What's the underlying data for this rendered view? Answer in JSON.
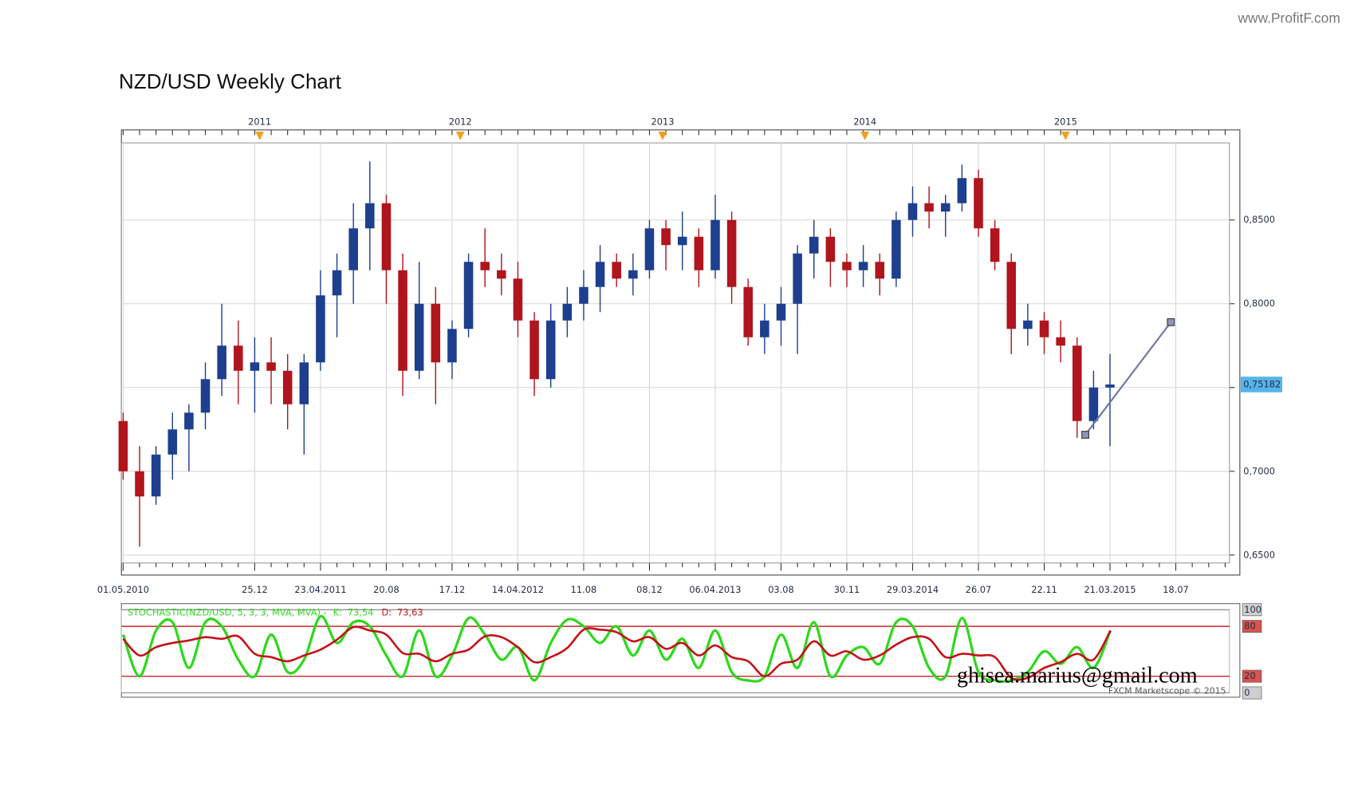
{
  "site": "www.ProfitF.com",
  "watermark": "ghisea.marius@gmail.com",
  "credit": "FXCM Marketscope © 2015",
  "chart_data": [
    {
      "type": "candlestick",
      "title": "NZD/USD Weekly Chart",
      "categories": [
        "01.05.2010",
        null,
        null,
        null,
        null,
        null,
        null,
        null,
        "25.12",
        null,
        null,
        null,
        "23.04.2011",
        null,
        null,
        null,
        "20.08",
        null,
        null,
        null,
        "17.12",
        null,
        null,
        null,
        "14.04.2012",
        null,
        null,
        null,
        "11.08",
        null,
        null,
        null,
        "08.12",
        null,
        null,
        null,
        "06.04.2013",
        null,
        null,
        null,
        "03.08",
        null,
        null,
        null,
        "30.11",
        null,
        null,
        null,
        "29.03.2014",
        null,
        null,
        null,
        "26.07",
        null,
        null,
        null,
        "22.11",
        null,
        null,
        null,
        "21.03.2015",
        null,
        null,
        null,
        "18.07",
        null,
        null,
        null
      ],
      "open": [
        0.73,
        0.7,
        0.685,
        0.71,
        0.725,
        0.735,
        0.755,
        0.775,
        0.76,
        0.765,
        0.76,
        0.74,
        0.765,
        0.805,
        0.82,
        0.845,
        0.86,
        0.82,
        0.76,
        0.8,
        0.765,
        0.785,
        0.825,
        0.82,
        0.815,
        0.79,
        0.755,
        0.79,
        0.8,
        0.81,
        0.825,
        0.815,
        0.82,
        0.845,
        0.835,
        0.84,
        0.82,
        0.85,
        0.81,
        0.78,
        0.79,
        0.8,
        0.83,
        0.84,
        0.825,
        0.82,
        0.825,
        0.815,
        0.85,
        0.86,
        0.855,
        0.86,
        0.875,
        0.845,
        0.825,
        0.785,
        0.79,
        0.78,
        0.775,
        0.73,
        0.75,
        null,
        null,
        null,
        null,
        null,
        null,
        null
      ],
      "high": [
        0.735,
        0.715,
        0.715,
        0.735,
        0.74,
        0.765,
        0.8,
        0.79,
        0.78,
        0.78,
        0.77,
        0.77,
        0.82,
        0.83,
        0.86,
        0.885,
        0.865,
        0.83,
        0.825,
        0.81,
        0.79,
        0.83,
        0.845,
        0.83,
        0.825,
        0.795,
        0.8,
        0.81,
        0.82,
        0.835,
        0.83,
        0.83,
        0.85,
        0.85,
        0.855,
        0.845,
        0.865,
        0.855,
        0.815,
        0.8,
        0.81,
        0.835,
        0.85,
        0.845,
        0.83,
        0.835,
        0.83,
        0.855,
        0.87,
        0.87,
        0.865,
        0.883,
        0.88,
        0.85,
        0.83,
        0.8,
        0.795,
        0.79,
        0.78,
        0.76,
        0.77,
        null,
        null,
        null,
        null,
        null,
        null,
        null
      ],
      "low": [
        0.695,
        0.655,
        0.68,
        0.695,
        0.7,
        0.725,
        0.745,
        0.74,
        0.735,
        0.74,
        0.725,
        0.71,
        0.76,
        0.78,
        0.8,
        0.82,
        0.8,
        0.745,
        0.755,
        0.74,
        0.755,
        0.78,
        0.81,
        0.805,
        0.78,
        0.745,
        0.75,
        0.78,
        0.79,
        0.795,
        0.81,
        0.805,
        0.815,
        0.82,
        0.82,
        0.81,
        0.815,
        0.8,
        0.775,
        0.77,
        0.775,
        0.77,
        0.815,
        0.81,
        0.81,
        0.81,
        0.805,
        0.81,
        0.84,
        0.845,
        0.84,
        0.855,
        0.84,
        0.82,
        0.77,
        0.775,
        0.77,
        0.765,
        0.72,
        0.725,
        0.715,
        null,
        null,
        null,
        null,
        null,
        null,
        null
      ],
      "close": [
        0.7,
        0.685,
        0.71,
        0.725,
        0.735,
        0.755,
        0.775,
        0.76,
        0.765,
        0.76,
        0.74,
        0.765,
        0.805,
        0.82,
        0.845,
        0.86,
        0.82,
        0.76,
        0.8,
        0.765,
        0.785,
        0.825,
        0.82,
        0.815,
        0.79,
        0.755,
        0.79,
        0.8,
        0.81,
        0.825,
        0.815,
        0.82,
        0.845,
        0.835,
        0.84,
        0.82,
        0.85,
        0.81,
        0.78,
        0.79,
        0.8,
        0.83,
        0.84,
        0.825,
        0.82,
        0.825,
        0.815,
        0.85,
        0.86,
        0.855,
        0.86,
        0.875,
        0.845,
        0.825,
        0.785,
        0.79,
        0.78,
        0.775,
        0.73,
        0.75,
        0.75182,
        null,
        null,
        null,
        null,
        null,
        null,
        null
      ],
      "up_color": "#1d3f8e",
      "down_color": "#b0141d",
      "ylim": [
        0.6453,
        0.896
      ],
      "yticks": [
        {
          "value": 0.65,
          "label": "0,6500"
        },
        {
          "value": 0.7,
          "label": "0,7000"
        },
        {
          "value": 0.75,
          "label": "0,7500"
        },
        {
          "value": 0.8,
          "label": "0,8000"
        },
        {
          "value": 0.85,
          "label": "0,8500"
        }
      ],
      "x2ticks": [
        {
          "value": 8.3,
          "label": "2011"
        },
        {
          "value": 20.5,
          "label": "2012"
        },
        {
          "value": 32.8,
          "label": "2013"
        },
        {
          "value": 45.1,
          "label": "2014"
        },
        {
          "value": 57.3,
          "label": "2015"
        }
      ],
      "grid": true,
      "last_price": {
        "value": 0.75182,
        "label": "0,75182",
        "color": "#56b4ea"
      },
      "trendline": {
        "x": [
          58.5,
          63.7
        ],
        "y": [
          0.7218,
          0.789
        ],
        "color": "#6a78a6"
      }
    },
    {
      "type": "line",
      "title": "STOCHASTIC(NZD/USD, 5, 3, 3, MVA, MVA) -",
      "series": [
        {
          "name": "K:",
          "color": "#2fd81e",
          "values": [
            70,
            20,
            75,
            85,
            30,
            85,
            80,
            40,
            20,
            70,
            25,
            40,
            92,
            60,
            85,
            80,
            45,
            20,
            75,
            20,
            45,
            90,
            70,
            40,
            55,
            15,
            60,
            88,
            80,
            60,
            80,
            45,
            75,
            40,
            65,
            30,
            75,
            25,
            15,
            20,
            70,
            30,
            85,
            20,
            45,
            55,
            35,
            85,
            80,
            30,
            20,
            90,
            25,
            15,
            15,
            25,
            50,
            35,
            55,
            30,
            73.54
          ],
          "last": {
            "value": 73.54,
            "label": "73,54"
          }
        },
        {
          "name": "D:",
          "color": "#c4121a",
          "values": [
            65,
            45,
            55,
            60,
            63,
            67,
            65,
            68,
            47,
            43,
            38,
            45,
            52,
            64,
            79,
            75,
            70,
            48,
            47,
            38,
            47,
            52,
            68,
            67,
            55,
            37,
            43,
            54,
            76,
            76,
            73,
            62,
            67,
            53,
            60,
            45,
            57,
            43,
            38,
            20,
            35,
            40,
            62,
            45,
            50,
            40,
            45,
            58,
            67,
            65,
            43,
            47,
            45,
            43,
            18,
            18,
            30,
            37,
            47,
            40,
            73.63
          ],
          "last": {
            "value": 73.63,
            "label": "73,63"
          }
        }
      ],
      "ylim": [
        0,
        100
      ],
      "yticks": [
        0,
        20,
        80,
        100
      ],
      "level_color": "#c8262c"
    }
  ]
}
